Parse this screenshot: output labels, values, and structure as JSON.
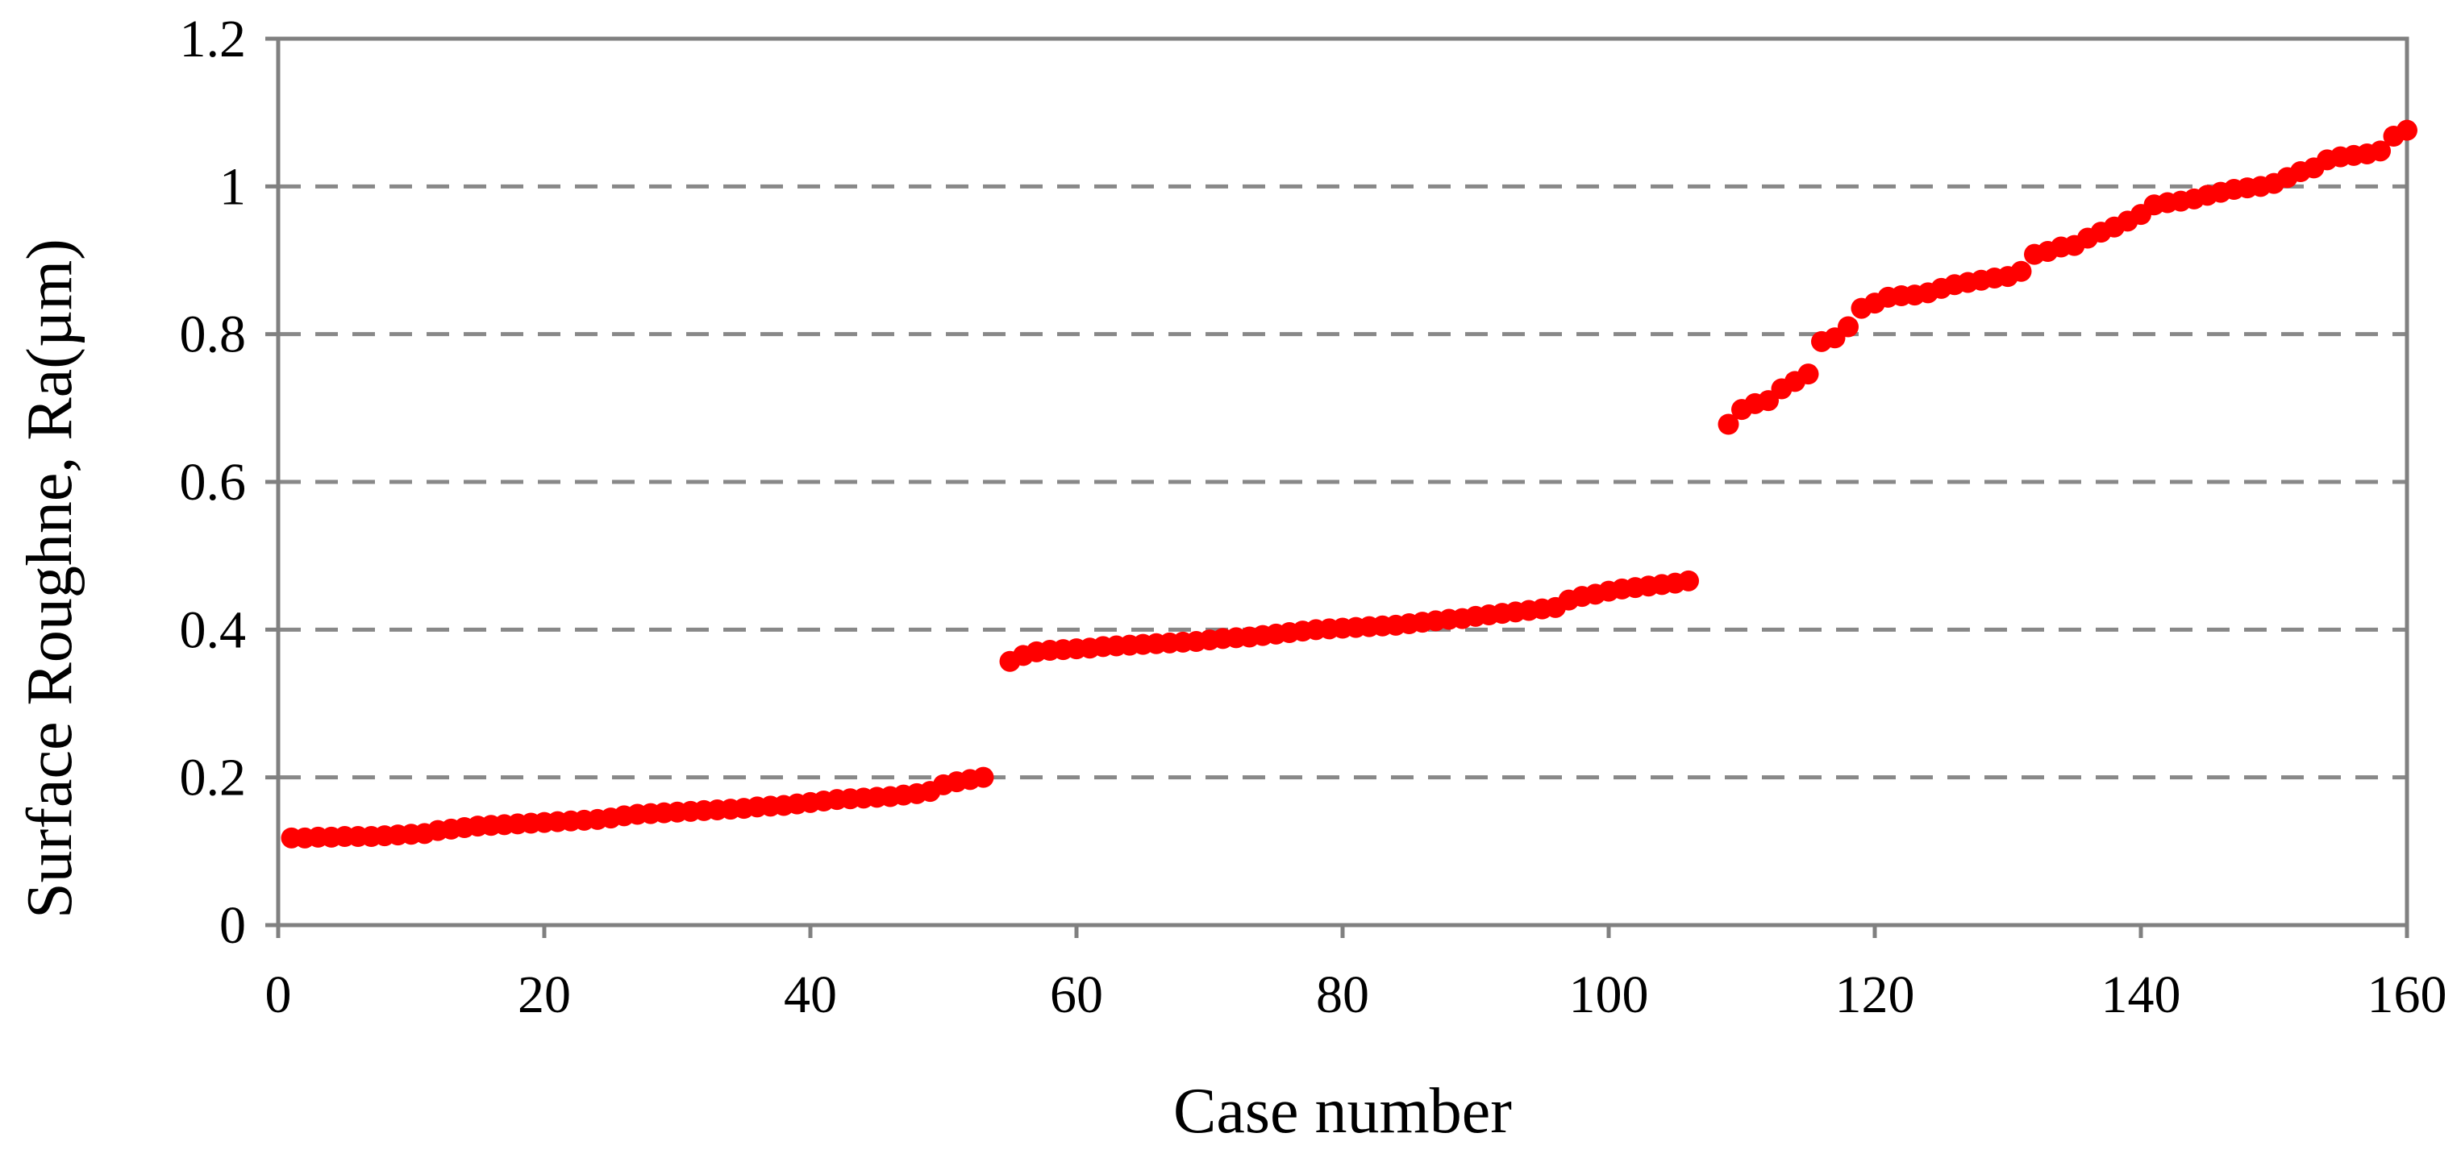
{
  "chart_data": {
    "type": "scatter",
    "xlabel": "Case number",
    "ylabel": "Surface Roughne, Ra(µm)",
    "xlim": [
      0,
      160
    ],
    "ylim": [
      0,
      1.2
    ],
    "x_ticks": [
      0,
      20,
      40,
      60,
      80,
      100,
      120,
      140,
      160
    ],
    "y_ticks": [
      0,
      0.2,
      0.4,
      0.6,
      0.8,
      1,
      1.2
    ],
    "x_tick_labels": [
      "0",
      "20",
      "40",
      "60",
      "80",
      "100",
      "120",
      "140",
      "160"
    ],
    "y_tick_labels": [
      "0",
      "0.2",
      "0.4",
      "0.6",
      "0.8",
      "1",
      "1.2"
    ],
    "grid": "horizontal dashed at y ticks",
    "legend": "none",
    "colors": {
      "marker": "#ff0000",
      "grid": "#888888",
      "axis": "#808080"
    },
    "series": [
      {
        "points": [
          [
            1,
            0.118
          ],
          [
            2,
            0.118
          ],
          [
            3,
            0.119
          ],
          [
            4,
            0.119
          ],
          [
            5,
            0.12
          ],
          [
            6,
            0.12
          ],
          [
            7,
            0.12
          ],
          [
            8,
            0.121
          ],
          [
            9,
            0.122
          ],
          [
            10,
            0.123
          ],
          [
            11,
            0.124
          ],
          [
            12,
            0.128
          ],
          [
            13,
            0.13
          ],
          [
            14,
            0.132
          ],
          [
            15,
            0.134
          ],
          [
            16,
            0.135
          ],
          [
            17,
            0.136
          ],
          [
            18,
            0.137
          ],
          [
            19,
            0.138
          ],
          [
            20,
            0.139
          ],
          [
            21,
            0.14
          ],
          [
            22,
            0.141
          ],
          [
            23,
            0.142
          ],
          [
            24,
            0.143
          ],
          [
            25,
            0.145
          ],
          [
            26,
            0.148
          ],
          [
            27,
            0.15
          ],
          [
            28,
            0.151
          ],
          [
            29,
            0.152
          ],
          [
            30,
            0.153
          ],
          [
            31,
            0.154
          ],
          [
            32,
            0.155
          ],
          [
            33,
            0.156
          ],
          [
            34,
            0.157
          ],
          [
            35,
            0.158
          ],
          [
            36,
            0.16
          ],
          [
            37,
            0.161
          ],
          [
            38,
            0.162
          ],
          [
            39,
            0.164
          ],
          [
            40,
            0.166
          ],
          [
            41,
            0.168
          ],
          [
            42,
            0.17
          ],
          [
            43,
            0.171
          ],
          [
            44,
            0.172
          ],
          [
            45,
            0.173
          ],
          [
            46,
            0.174
          ],
          [
            47,
            0.176
          ],
          [
            48,
            0.178
          ],
          [
            49,
            0.181
          ],
          [
            50,
            0.19
          ],
          [
            51,
            0.194
          ],
          [
            52,
            0.197
          ],
          [
            53,
            0.2
          ],
          [
            55,
            0.357
          ],
          [
            56,
            0.365
          ],
          [
            57,
            0.37
          ],
          [
            58,
            0.372
          ],
          [
            59,
            0.373
          ],
          [
            60,
            0.374
          ],
          [
            61,
            0.375
          ],
          [
            62,
            0.377
          ],
          [
            63,
            0.378
          ],
          [
            64,
            0.379
          ],
          [
            65,
            0.38
          ],
          [
            66,
            0.381
          ],
          [
            67,
            0.382
          ],
          [
            68,
            0.383
          ],
          [
            69,
            0.384
          ],
          [
            70,
            0.386
          ],
          [
            71,
            0.388
          ],
          [
            72,
            0.389
          ],
          [
            73,
            0.39
          ],
          [
            74,
            0.392
          ],
          [
            75,
            0.394
          ],
          [
            76,
            0.396
          ],
          [
            77,
            0.398
          ],
          [
            78,
            0.4
          ],
          [
            79,
            0.401
          ],
          [
            80,
            0.402
          ],
          [
            81,
            0.403
          ],
          [
            82,
            0.404
          ],
          [
            83,
            0.405
          ],
          [
            84,
            0.406
          ],
          [
            85,
            0.408
          ],
          [
            86,
            0.41
          ],
          [
            87,
            0.412
          ],
          [
            88,
            0.414
          ],
          [
            89,
            0.415
          ],
          [
            90,
            0.418
          ],
          [
            91,
            0.42
          ],
          [
            92,
            0.422
          ],
          [
            93,
            0.424
          ],
          [
            94,
            0.426
          ],
          [
            95,
            0.428
          ],
          [
            96,
            0.43
          ],
          [
            97,
            0.44
          ],
          [
            98,
            0.445
          ],
          [
            99,
            0.448
          ],
          [
            100,
            0.452
          ],
          [
            101,
            0.455
          ],
          [
            102,
            0.457
          ],
          [
            103,
            0.459
          ],
          [
            104,
            0.461
          ],
          [
            105,
            0.463
          ],
          [
            106,
            0.466
          ],
          [
            109,
            0.678
          ],
          [
            110,
            0.698
          ],
          [
            111,
            0.706
          ],
          [
            112,
            0.71
          ],
          [
            113,
            0.726
          ],
          [
            114,
            0.736
          ],
          [
            115,
            0.746
          ],
          [
            116,
            0.79
          ],
          [
            117,
            0.795
          ],
          [
            118,
            0.81
          ],
          [
            119,
            0.835
          ],
          [
            120,
            0.842
          ],
          [
            121,
            0.85
          ],
          [
            122,
            0.852
          ],
          [
            123,
            0.853
          ],
          [
            124,
            0.856
          ],
          [
            125,
            0.862
          ],
          [
            126,
            0.867
          ],
          [
            127,
            0.87
          ],
          [
            128,
            0.873
          ],
          [
            129,
            0.876
          ],
          [
            130,
            0.878
          ],
          [
            131,
            0.885
          ],
          [
            132,
            0.908
          ],
          [
            133,
            0.912
          ],
          [
            134,
            0.918
          ],
          [
            135,
            0.92
          ],
          [
            136,
            0.93
          ],
          [
            137,
            0.938
          ],
          [
            138,
            0.945
          ],
          [
            139,
            0.953
          ],
          [
            140,
            0.962
          ],
          [
            141,
            0.975
          ],
          [
            142,
            0.978
          ],
          [
            143,
            0.98
          ],
          [
            144,
            0.983
          ],
          [
            145,
            0.988
          ],
          [
            146,
            0.992
          ],
          [
            147,
            0.996
          ],
          [
            148,
            0.998
          ],
          [
            149,
            1.0
          ],
          [
            150,
            1.004
          ],
          [
            151,
            1.012
          ],
          [
            152,
            1.02
          ],
          [
            153,
            1.025
          ],
          [
            154,
            1.036
          ],
          [
            155,
            1.04
          ],
          [
            156,
            1.042
          ],
          [
            157,
            1.044
          ],
          [
            158,
            1.048
          ],
          [
            159,
            1.068
          ],
          [
            160,
            1.076
          ]
        ]
      }
    ]
  }
}
